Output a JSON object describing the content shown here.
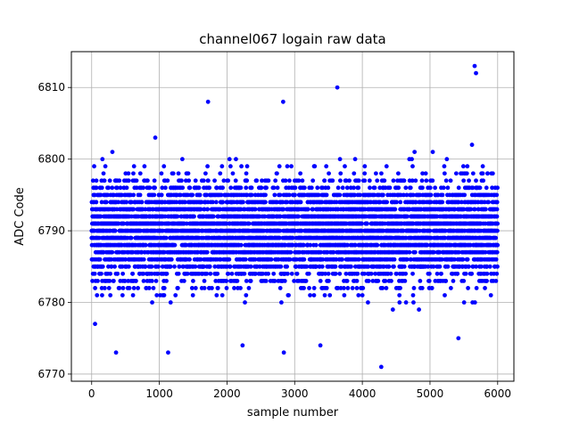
{
  "chart_data": {
    "type": "scatter",
    "title": "channel067 logain raw data",
    "xlabel": "sample number",
    "ylabel": "ADC Code",
    "xlim": [
      -300,
      6240
    ],
    "ylim": [
      6769,
      6815
    ],
    "xticks": [
      0,
      1000,
      2000,
      3000,
      4000,
      5000,
      6000
    ],
    "yticks": [
      6770,
      6780,
      6790,
      6800,
      6810
    ],
    "grid": true,
    "marker_color": "#0000ff",
    "n_samples": 6000,
    "baseline": 6790,
    "typical_range": [
      6776,
      6805
    ],
    "notable_points": [
      {
        "x": 50,
        "y": 6777
      },
      {
        "x": 360,
        "y": 6773
      },
      {
        "x": 1130,
        "y": 6773
      },
      {
        "x": 1720,
        "y": 6808
      },
      {
        "x": 2230,
        "y": 6774
      },
      {
        "x": 2830,
        "y": 6808
      },
      {
        "x": 2840,
        "y": 6773
      },
      {
        "x": 3380,
        "y": 6774
      },
      {
        "x": 3630,
        "y": 6810
      },
      {
        "x": 4280,
        "y": 6771
      },
      {
        "x": 5420,
        "y": 6775
      },
      {
        "x": 5660,
        "y": 6813
      },
      {
        "x": 5680,
        "y": 6812
      }
    ]
  }
}
